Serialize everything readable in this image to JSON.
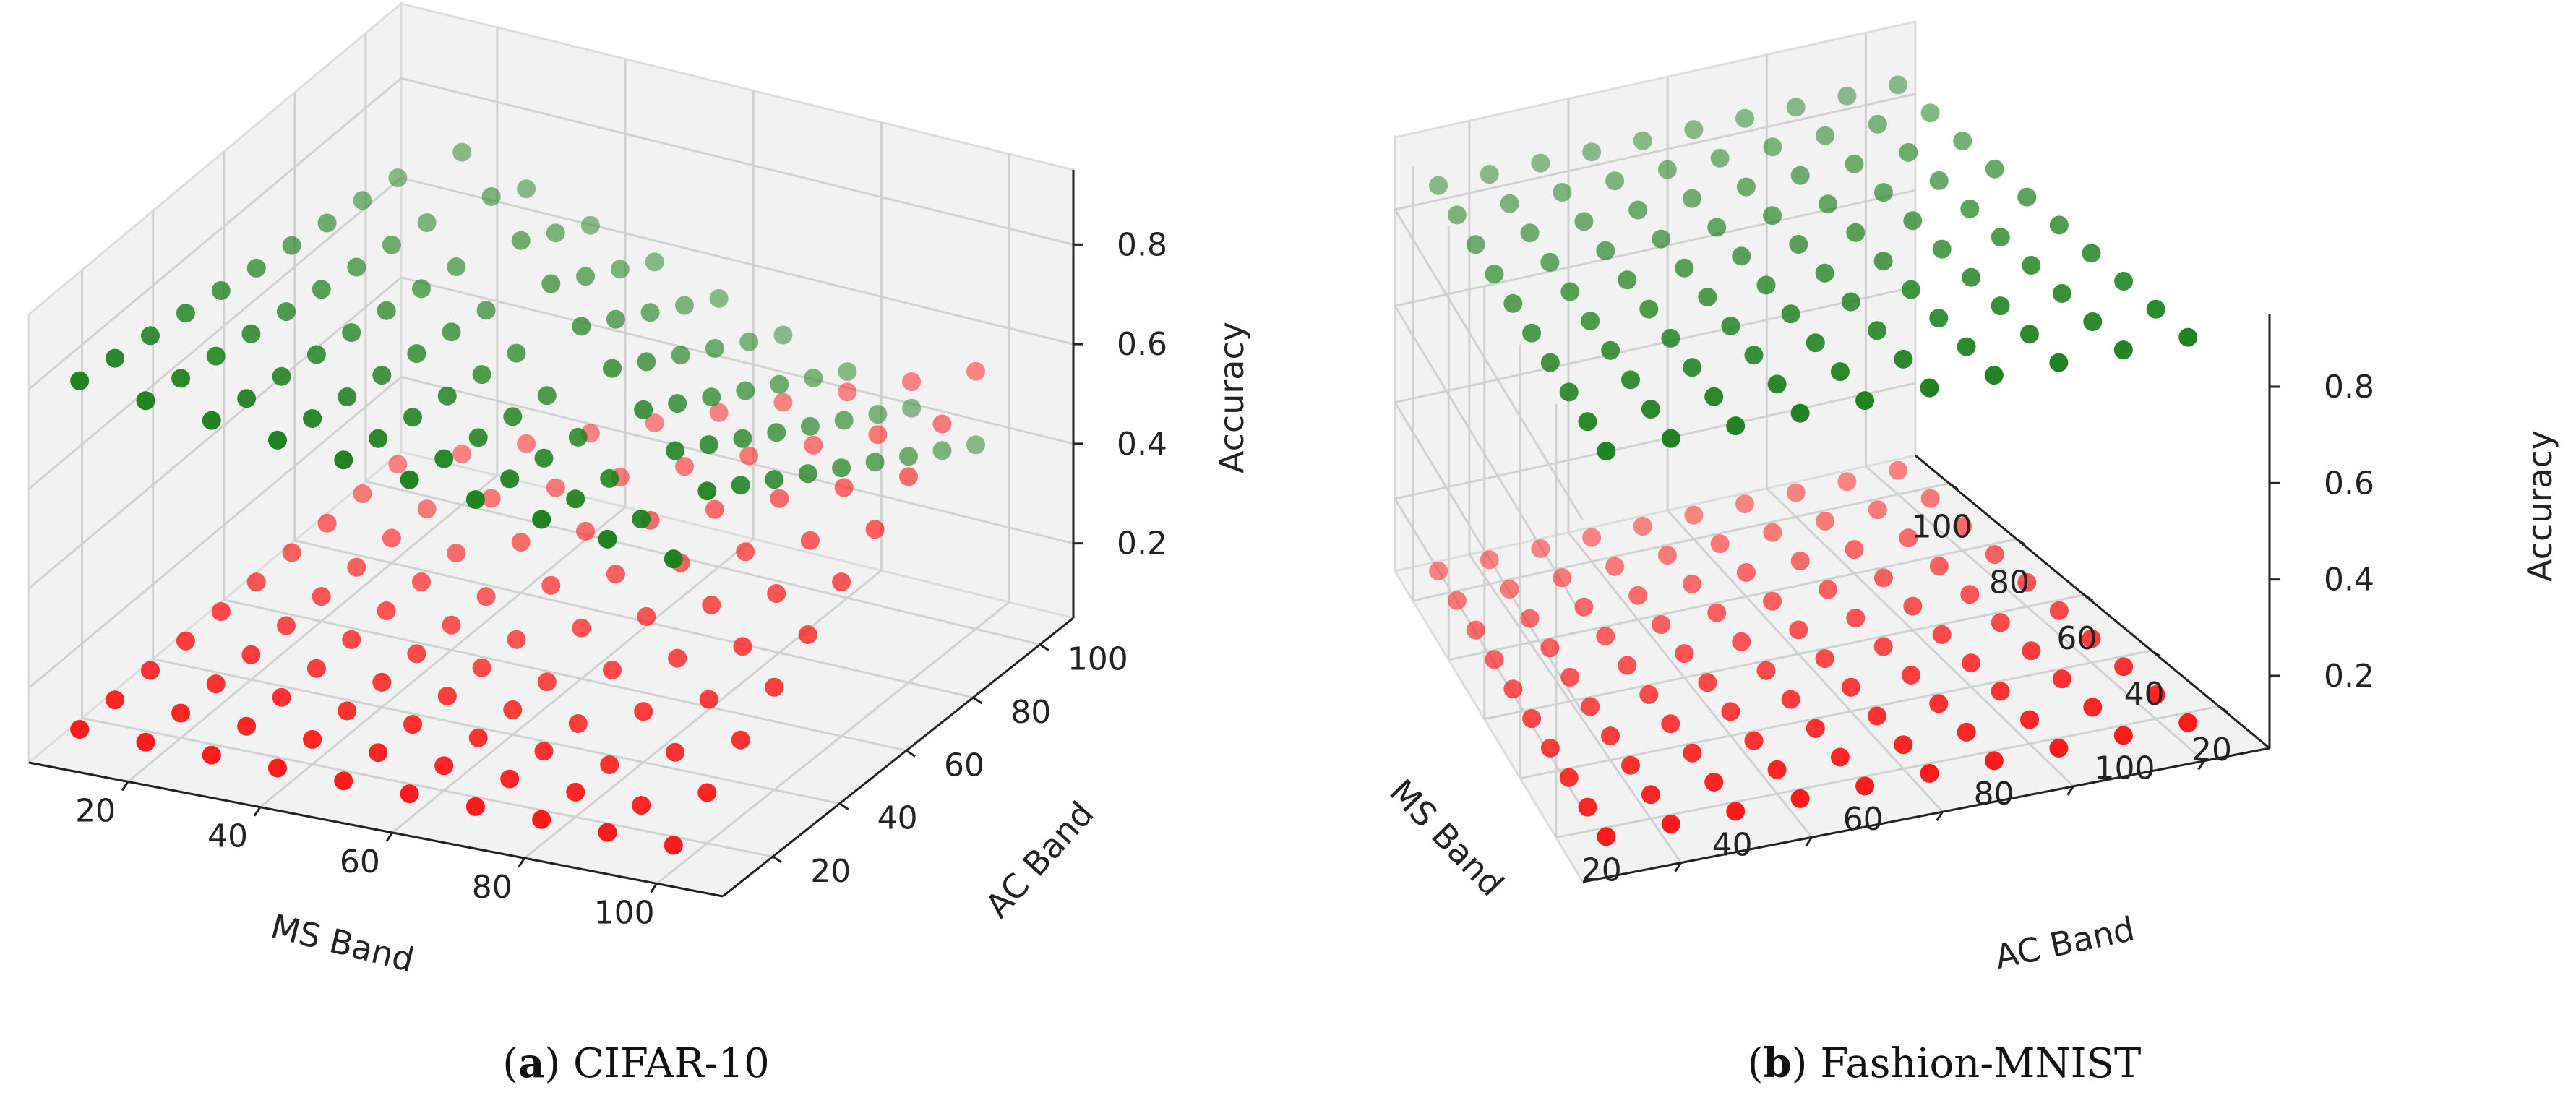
{
  "colors": {
    "high_series": "#1a7f1a",
    "low_series": "#ff1414"
  },
  "chart_data": [
    {
      "type": "scatter3d",
      "caption": {
        "letter": "a",
        "text": " CIFAR-10"
      },
      "xlabel": "MS Band",
      "ylabel": "AC Band",
      "zlabel": "Accuracy",
      "x_ticks": [
        20,
        40,
        60,
        80,
        100
      ],
      "y_ticks": [
        20,
        40,
        60,
        80,
        100
      ],
      "z_ticks": [
        0.2,
        0.4,
        0.6,
        0.8
      ],
      "xlim": [
        5,
        110
      ],
      "ylim": [
        5,
        110
      ],
      "zlim": [
        0.05,
        0.95
      ],
      "grid": true,
      "ms_band": [
        10,
        20,
        30,
        40,
        50,
        60,
        70,
        80,
        90,
        100
      ],
      "ac_band": [
        10,
        20,
        30,
        40,
        50,
        60,
        70,
        80,
        90,
        100
      ],
      "series": [
        {
          "name": "",
          "color": "#1a7f1a",
          "level": 0.8,
          "tilt": -0.25,
          "transition": "ms_plus_ac_over_threshold",
          "threshold": 110
        },
        {
          "name": "",
          "color": "#ff1414",
          "level": 0.1,
          "rise": 0.85,
          "transition": "ms_plus_ac_over_threshold",
          "threshold": 110
        }
      ]
    },
    {
      "type": "scatter3d",
      "caption": {
        "letter": "b",
        "text": " Fashion-MNIST"
      },
      "xlabel": "MS Band",
      "ylabel": "AC Band",
      "zlabel": "Accuracy",
      "x_ticks": [
        20,
        40,
        60,
        80,
        100
      ],
      "y_ticks": [
        20,
        40,
        60,
        80,
        100
      ],
      "z_ticks": [
        0.2,
        0.4,
        0.6,
        0.8
      ],
      "xlim": [
        5,
        110
      ],
      "ylim": [
        5,
        110
      ],
      "zlim": [
        0.05,
        0.95
      ],
      "grid": true,
      "ms_band": [
        10,
        20,
        30,
        40,
        50,
        60,
        70,
        80,
        90,
        100
      ],
      "ac_band": [
        10,
        20,
        30,
        40,
        50,
        60,
        70,
        80,
        90,
        100
      ],
      "series": [
        {
          "name": "",
          "color": "#1a7f1a",
          "level": 0.9,
          "tilt": 0.0
        },
        {
          "name": "",
          "color": "#ff1414",
          "level": 0.1,
          "tilt": 0.0
        }
      ]
    }
  ]
}
